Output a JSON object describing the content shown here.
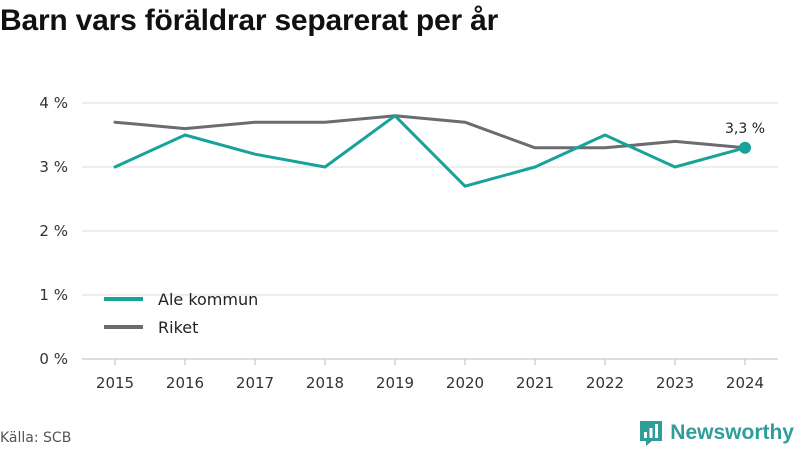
{
  "title": "Barn vars föräldrar separerat per år",
  "source": "Källa: SCB",
  "brand": {
    "name": "Newsworthy",
    "icon": "newsworthy-logo-icon"
  },
  "colors": {
    "ale": "#17a39a",
    "riket": "#6b6b72",
    "grid": "#dddddd",
    "brand": "#2f9e9a"
  },
  "chart_data": {
    "type": "line",
    "x": [
      2015,
      2016,
      2017,
      2018,
      2019,
      2020,
      2021,
      2022,
      2023,
      2024
    ],
    "ylim": [
      0,
      4
    ],
    "yticks": [
      0,
      1,
      2,
      3,
      4
    ],
    "ytick_labels": [
      "0 %",
      "1 %",
      "2 %",
      "3 %",
      "4 %"
    ],
    "xtick_labels": [
      "2015",
      "2016",
      "2017",
      "2018",
      "2019",
      "2020",
      "2021",
      "2022",
      "2023",
      "2024"
    ],
    "grid": true,
    "legend_position": "bottom-left",
    "series": [
      {
        "name": "Ale kommun",
        "color": "#17a39a",
        "values": [
          3.0,
          3.5,
          3.2,
          3.0,
          3.8,
          2.7,
          3.0,
          3.5,
          3.0,
          3.3
        ]
      },
      {
        "name": "Riket",
        "color": "#6b6b72",
        "values": [
          3.7,
          3.6,
          3.7,
          3.7,
          3.8,
          3.7,
          3.3,
          3.3,
          3.4,
          3.3
        ]
      }
    ],
    "annotation": {
      "series": 0,
      "index": 9,
      "label": "3,3 %"
    }
  }
}
